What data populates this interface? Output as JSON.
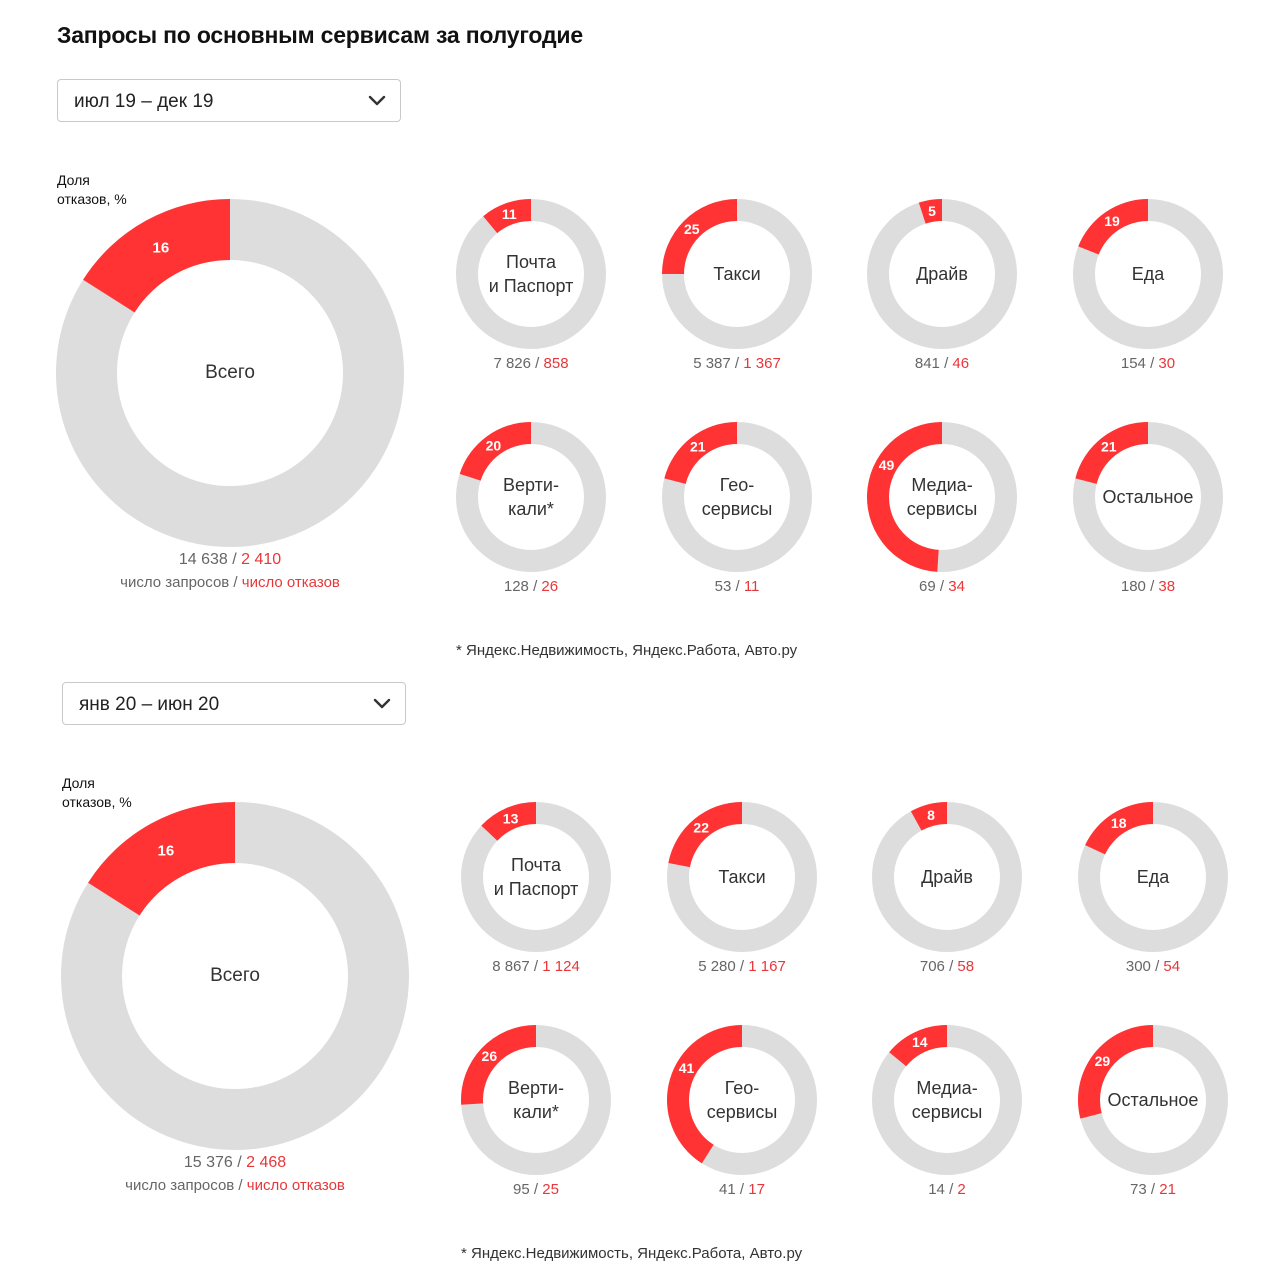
{
  "title": "Запросы по основным сервисам за полугодие",
  "colors": {
    "refusal": "#ff3333",
    "requests": "#dddddd",
    "refusal_text": "#e8373a"
  },
  "sections": [
    {
      "period": "июл 19 – дек 19",
      "share_label": [
        "Доля",
        "отказов, %"
      ],
      "legend": {
        "requests": "число запросов",
        "separator": " / ",
        "refusals": "число отказов"
      },
      "footnote": "* Яндекс.Недвижимость, Яндекс.Работа, Авто.ру",
      "chart_data": {
        "type": "donut",
        "total": {
          "label": [
            "Всего"
          ],
          "share_percent": 16,
          "requests": "14 638",
          "refusals": "2 410"
        },
        "services": [
          {
            "label": [
              "Почта",
              "и Паспорт"
            ],
            "share_percent": 11,
            "requests": "7 826",
            "refusals": "858"
          },
          {
            "label": [
              "Такси"
            ],
            "share_percent": 25,
            "requests": "5 387",
            "refusals": "1 367"
          },
          {
            "label": [
              "Драйв"
            ],
            "share_percent": 5,
            "requests": "841",
            "refusals": "46"
          },
          {
            "label": [
              "Еда"
            ],
            "share_percent": 19,
            "requests": "154",
            "refusals": "30"
          },
          {
            "label": [
              "Верти-",
              "кали*"
            ],
            "share_percent": 20,
            "requests": "128",
            "refusals": "26"
          },
          {
            "label": [
              "Гео-",
              "сервисы"
            ],
            "share_percent": 21,
            "requests": "53",
            "refusals": "11"
          },
          {
            "label": [
              "Медиа-",
              "сервисы"
            ],
            "share_percent": 49,
            "requests": "69",
            "refusals": "34"
          },
          {
            "label": [
              "Остальное"
            ],
            "share_percent": 21,
            "requests": "180",
            "refusals": "38"
          }
        ]
      }
    },
    {
      "period": "янв 20 – июн 20",
      "share_label": [
        "Доля",
        "отказов, %"
      ],
      "legend": {
        "requests": "число запросов",
        "separator": " / ",
        "refusals": "число отказов"
      },
      "footnote": "* Яндекс.Недвижимость, Яндекс.Работа, Авто.ру",
      "chart_data": {
        "type": "donut",
        "total": {
          "label": [
            "Всего"
          ],
          "share_percent": 16,
          "requests": "15 376",
          "refusals": "2 468"
        },
        "services": [
          {
            "label": [
              "Почта",
              "и Паспорт"
            ],
            "share_percent": 13,
            "requests": "8 867",
            "refusals": "1 124"
          },
          {
            "label": [
              "Такси"
            ],
            "share_percent": 22,
            "requests": "5 280",
            "refusals": "1 167"
          },
          {
            "label": [
              "Драйв"
            ],
            "share_percent": 8,
            "requests": "706",
            "refusals": "58"
          },
          {
            "label": [
              "Еда"
            ],
            "share_percent": 18,
            "requests": "300",
            "refusals": "54"
          },
          {
            "label": [
              "Верти-",
              "кали*"
            ],
            "share_percent": 26,
            "requests": "95",
            "refusals": "25"
          },
          {
            "label": [
              "Гео-",
              "сервисы"
            ],
            "share_percent": 41,
            "requests": "41",
            "refusals": "17"
          },
          {
            "label": [
              "Медиа-",
              "сервисы"
            ],
            "share_percent": 14,
            "requests": "14",
            "refusals": "2"
          },
          {
            "label": [
              "Остальное"
            ],
            "share_percent": 29,
            "requests": "73",
            "refusals": "21"
          }
        ]
      }
    }
  ]
}
